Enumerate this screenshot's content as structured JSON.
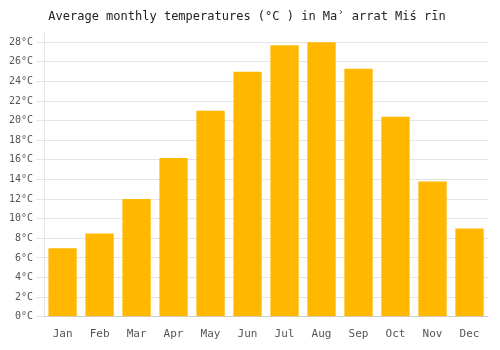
{
  "chart_data": {
    "type": "bar",
    "title": "Average monthly temperatures (°C ) in Maʾ arrat Miś rīn",
    "categories": [
      "Jan",
      "Feb",
      "Mar",
      "Apr",
      "May",
      "Jun",
      "Jul",
      "Aug",
      "Sep",
      "Oct",
      "Nov",
      "Dec"
    ],
    "values": [
      7,
      8.5,
      12,
      16.2,
      21,
      25,
      27.7,
      28,
      25.3,
      20.4,
      13.8,
      9
    ],
    "color": "#FFB700",
    "ylim": [
      0,
      29
    ],
    "yticks": [
      {
        "value": 0,
        "label": "0°C"
      },
      {
        "value": 2,
        "label": "2°C"
      },
      {
        "value": 4,
        "label": "4°C"
      },
      {
        "value": 6,
        "label": "6°C"
      },
      {
        "value": 8,
        "label": "8°C"
      },
      {
        "value": 10,
        "label": "10°C"
      },
      {
        "value": 12,
        "label": "12°C"
      },
      {
        "value": 14,
        "label": "14°C"
      },
      {
        "value": 16,
        "label": "16°C"
      },
      {
        "value": 18,
        "label": "18°C"
      },
      {
        "value": 20,
        "label": "20°C"
      },
      {
        "value": 22,
        "label": "22°C"
      },
      {
        "value": 24,
        "label": "24°C"
      },
      {
        "value": 26,
        "label": "26°C"
      },
      {
        "value": 28,
        "label": "28°C"
      }
    ],
    "grid": true
  }
}
